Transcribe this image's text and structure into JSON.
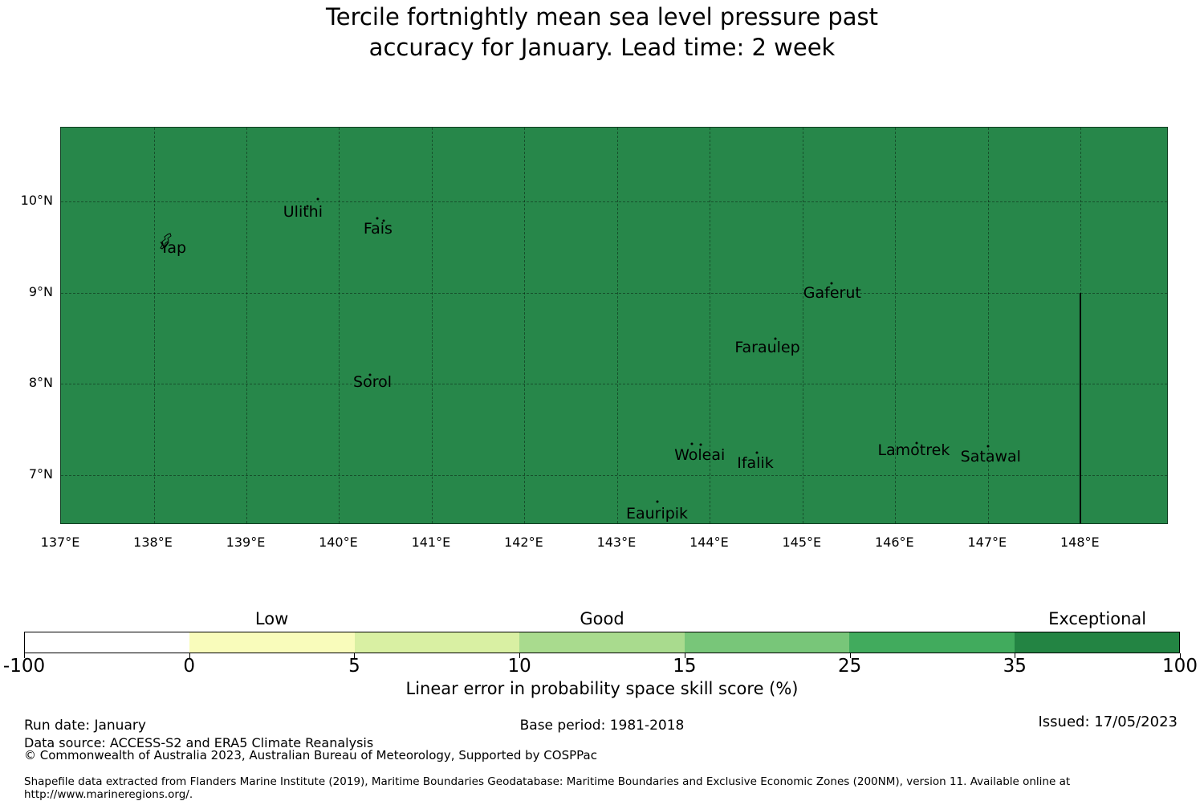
{
  "title": "Tercile fortnightly mean sea level pressure past\naccuracy for January. Lead time: 2 week",
  "map": {
    "fill_color": "#27874A",
    "gridline_style": "dashed",
    "extent": {
      "lon_min": 137,
      "lon_max": 148.95,
      "lat_min": 6.456,
      "lat_max": 10.809
    },
    "x_ticks": [
      {
        "lon": 137,
        "label": "137°E"
      },
      {
        "lon": 138,
        "label": "138°E"
      },
      {
        "lon": 139,
        "label": "139°E"
      },
      {
        "lon": 140,
        "label": "140°E"
      },
      {
        "lon": 141,
        "label": "141°E"
      },
      {
        "lon": 142,
        "label": "142°E"
      },
      {
        "lon": 143,
        "label": "143°E"
      },
      {
        "lon": 144,
        "label": "144°E"
      },
      {
        "lon": 145,
        "label": "145°E"
      },
      {
        "lon": 146,
        "label": "146°E"
      },
      {
        "lon": 147,
        "label": "147°E"
      },
      {
        "lon": 148,
        "label": "148°E"
      }
    ],
    "y_ticks": [
      {
        "lat": 10,
        "label": "10°N"
      },
      {
        "lat": 9,
        "label": "9°N"
      },
      {
        "lat": 8,
        "label": "8°N"
      },
      {
        "lat": 7,
        "label": "7°N"
      }
    ],
    "islands": [
      {
        "name": "Yap",
        "lon": 138.21,
        "lat": 9.49,
        "dots": [],
        "has_outline": true
      },
      {
        "name": "Ulithi",
        "lon": 139.61,
        "lat": 9.885,
        "dots": [
          [
            139.77,
            10.025
          ],
          [
            139.655,
            9.945
          ]
        ]
      },
      {
        "name": "Fais",
        "lon": 140.42,
        "lat": 9.7,
        "dots": [
          [
            140.415,
            9.815
          ],
          [
            140.48,
            9.79
          ]
        ]
      },
      {
        "name": "Sorol",
        "lon": 140.36,
        "lat": 8.02,
        "dots": [
          [
            140.33,
            8.105
          ]
        ]
      },
      {
        "name": "Gaferut",
        "lon": 145.32,
        "lat": 9.0,
        "dots": [
          [
            145.31,
            9.105
          ]
        ]
      },
      {
        "name": "Faraulep",
        "lon": 144.62,
        "lat": 8.4,
        "dots": [
          [
            144.71,
            8.5
          ]
        ]
      },
      {
        "name": "Woleai",
        "lon": 143.89,
        "lat": 7.22,
        "dots": [
          [
            143.81,
            7.345
          ],
          [
            143.9,
            7.34
          ]
        ]
      },
      {
        "name": "Ifalik",
        "lon": 144.49,
        "lat": 7.13,
        "dots": [
          [
            144.51,
            7.25
          ]
        ]
      },
      {
        "name": "Lamotrek",
        "lon": 146.2,
        "lat": 7.27,
        "dots": [
          [
            146.23,
            7.35
          ]
        ]
      },
      {
        "name": "Satawal",
        "lon": 147.03,
        "lat": 7.2,
        "dots": [
          [
            147.0,
            7.32
          ]
        ]
      },
      {
        "name": "Eauripik",
        "lon": 143.43,
        "lat": 6.58,
        "dots": [
          [
            143.43,
            6.715
          ]
        ]
      }
    ],
    "boundary_line": {
      "lon": 148,
      "lat_from": 9.0,
      "lat_to": 6.456
    }
  },
  "colorbar": {
    "tick_labels": [
      "-100",
      "0",
      "5",
      "10",
      "15",
      "25",
      "35",
      "100"
    ],
    "segment_colors": [
      "#ffffff",
      "#f9fcbb",
      "#d9f0a3",
      "#a9db8e",
      "#78c679",
      "#41ab5d",
      "#238443"
    ],
    "region_labels": [
      {
        "label": "Low",
        "segment_index": 1
      },
      {
        "label": "Good",
        "segment_index": 3
      },
      {
        "label": "Exceptional",
        "segment_index": 6
      }
    ],
    "axis_label": "Linear error in probability space skill score (%)"
  },
  "footer": {
    "run_date": "Run date: January",
    "base_period": "Base period: 1981-2018",
    "issued": "Issued: 17/05/2023",
    "data_source": "Data source: ACCESS-S2 and ERA5 Climate Reanalysis",
    "copyright": "© Commonwealth of Australia 2023, Australian Bureau of Meteorology, Supported by COSPPac",
    "shapefile_note": "Shapefile data extracted from Flanders Marine Institute (2019), Maritime Boundaries Geodatabase: Maritime Boundaries and Exclusive Economic Zones (200NM), version 11. Available online at http://www.marineregions.org/."
  }
}
